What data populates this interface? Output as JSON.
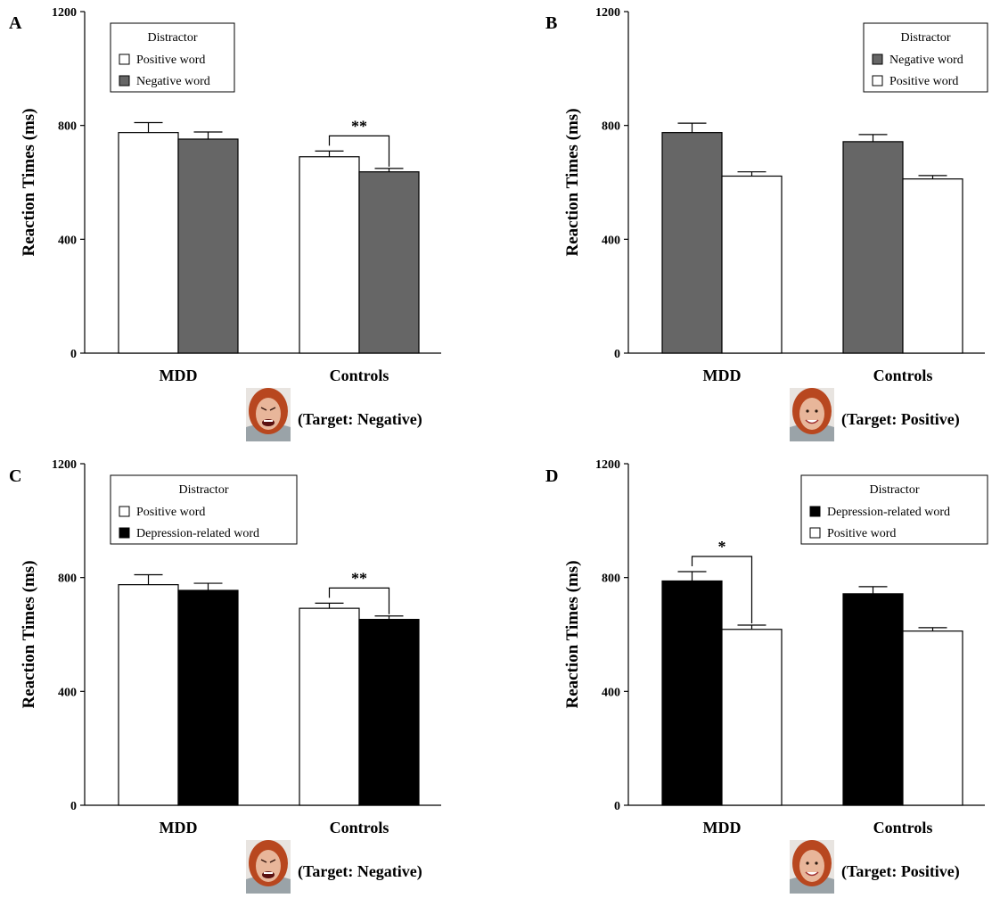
{
  "chart_data": [
    {
      "panel": "A",
      "type": "bar",
      "categories": [
        "MDD",
        "Controls"
      ],
      "ylabel": "Reaction Times (ms)",
      "ylim": [
        0,
        1200
      ],
      "yticks": [
        0,
        400,
        800,
        1200
      ],
      "legend": {
        "title": "Distractor",
        "placement": "top-left"
      },
      "series": [
        {
          "name": "Positive word",
          "color": "#ffffff",
          "values": [
            775,
            690
          ],
          "errors": [
            35,
            20
          ]
        },
        {
          "name": "Negative word",
          "color": "#666666",
          "values": [
            752,
            637
          ],
          "errors": [
            25,
            12
          ]
        }
      ],
      "significance": [
        {
          "category": 1,
          "label": "**"
        }
      ],
      "target_label": "(Target: Negative)",
      "face": "negative"
    },
    {
      "panel": "B",
      "type": "bar",
      "categories": [
        "MDD",
        "Controls"
      ],
      "ylabel": "Reaction Times (ms)",
      "ylim": [
        0,
        1200
      ],
      "yticks": [
        0,
        400,
        800,
        1200
      ],
      "legend": {
        "title": "Distractor",
        "placement": "top-right"
      },
      "series": [
        {
          "name": "Negative word",
          "color": "#666666",
          "values": [
            775,
            743
          ],
          "errors": [
            33,
            25
          ]
        },
        {
          "name": "Positive word",
          "color": "#ffffff",
          "values": [
            622,
            612
          ],
          "errors": [
            15,
            12
          ]
        }
      ],
      "significance": [],
      "target_label": "(Target: Positive)",
      "face": "positive"
    },
    {
      "panel": "C",
      "type": "bar",
      "categories": [
        "MDD",
        "Controls"
      ],
      "ylabel": "Reaction Times (ms)",
      "ylim": [
        0,
        1200
      ],
      "yticks": [
        0,
        400,
        800,
        1200
      ],
      "legend": {
        "title": "Distractor",
        "placement": "top-left"
      },
      "series": [
        {
          "name": "Positive word",
          "color": "#ffffff",
          "values": [
            775,
            692
          ],
          "errors": [
            35,
            18
          ]
        },
        {
          "name": "Depression-related word",
          "color": "#000000",
          "values": [
            755,
            653
          ],
          "errors": [
            25,
            12
          ]
        }
      ],
      "significance": [
        {
          "category": 1,
          "label": "**"
        }
      ],
      "target_label": "(Target: Negative)",
      "face": "negative"
    },
    {
      "panel": "D",
      "type": "bar",
      "categories": [
        "MDD",
        "Controls"
      ],
      "ylabel": "Reaction Times (ms)",
      "ylim": [
        0,
        1200
      ],
      "yticks": [
        0,
        400,
        800,
        1200
      ],
      "legend": {
        "title": "Distractor",
        "placement": "top-right"
      },
      "series": [
        {
          "name": "Depression-related word",
          "color": "#000000",
          "values": [
            788,
            743
          ],
          "errors": [
            33,
            25
          ]
        },
        {
          "name": "Positive word",
          "color": "#ffffff",
          "values": [
            618,
            612
          ],
          "errors": [
            15,
            12
          ]
        }
      ],
      "significance": [
        {
          "category": 0,
          "label": "*"
        }
      ],
      "target_label": "(Target: Positive)",
      "face": "positive"
    }
  ]
}
